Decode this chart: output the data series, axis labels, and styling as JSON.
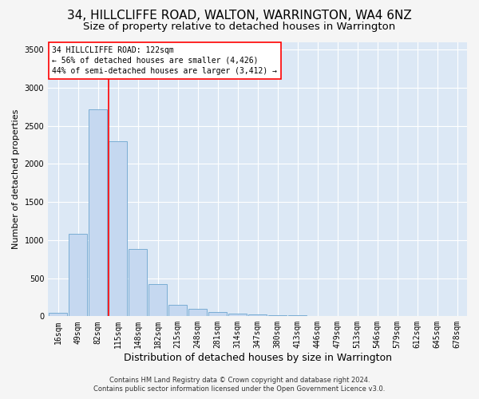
{
  "title": "34, HILLCLIFFE ROAD, WALTON, WARRINGTON, WA4 6NZ",
  "subtitle": "Size of property relative to detached houses in Warrington",
  "xlabel": "Distribution of detached houses by size in Warrington",
  "ylabel": "Number of detached properties",
  "categories": [
    "16sqm",
    "49sqm",
    "82sqm",
    "115sqm",
    "148sqm",
    "182sqm",
    "215sqm",
    "248sqm",
    "281sqm",
    "314sqm",
    "347sqm",
    "380sqm",
    "413sqm",
    "446sqm",
    "479sqm",
    "513sqm",
    "546sqm",
    "579sqm",
    "612sqm",
    "645sqm",
    "678sqm"
  ],
  "values": [
    50,
    1080,
    2720,
    2300,
    880,
    420,
    150,
    100,
    60,
    40,
    20,
    15,
    10,
    8,
    5,
    4,
    3,
    3,
    2,
    2,
    1
  ],
  "bar_color": "#c5d8f0",
  "bar_edgecolor": "#7aadd4",
  "background_color": "#dce8f5",
  "grid_color": "#ffffff",
  "fig_facecolor": "#f5f5f5",
  "ylim": [
    0,
    3600
  ],
  "yticks": [
    0,
    500,
    1000,
    1500,
    2000,
    2500,
    3000,
    3500
  ],
  "red_line_x": 2.55,
  "property_label": "34 HILLCLIFFE ROAD: 122sqm",
  "annotation_line1": "← 56% of detached houses are smaller (4,426)",
  "annotation_line2": "44% of semi-detached houses are larger (3,412) →",
  "footer_line1": "Contains HM Land Registry data © Crown copyright and database right 2024.",
  "footer_line2": "Contains public sector information licensed under the Open Government Licence v3.0.",
  "title_fontsize": 11,
  "subtitle_fontsize": 9.5,
  "xlabel_fontsize": 9,
  "ylabel_fontsize": 8,
  "tick_fontsize": 7,
  "annotation_fontsize": 7,
  "footer_fontsize": 6
}
